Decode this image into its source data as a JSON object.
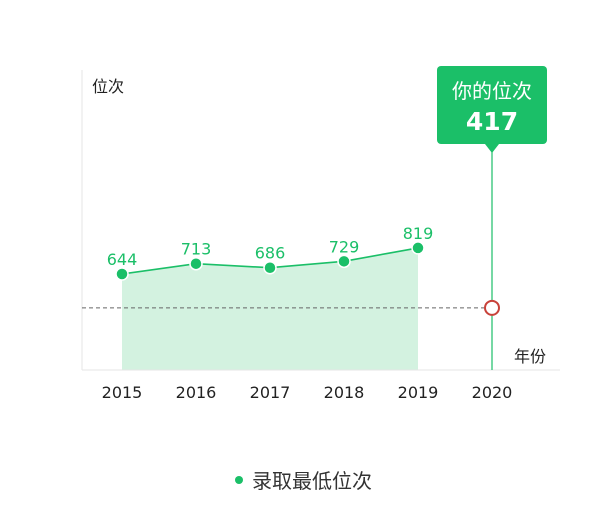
{
  "colors": {
    "accent": "#1bbf68",
    "area_fill": "#d3f2e0",
    "reference_line": "#666666",
    "marker_ring": "#c8423a"
  },
  "chart_data": {
    "type": "line",
    "ylabel": "位次",
    "xlabel": "年份",
    "categories": [
      "2015",
      "2016",
      "2017",
      "2018",
      "2019",
      "2020"
    ],
    "series": [
      {
        "name": "录取最低位次",
        "values": [
          644,
          713,
          686,
          729,
          819,
          null
        ]
      }
    ],
    "data_labels": [
      "644",
      "713",
      "686",
      "729",
      "819"
    ],
    "ylim": [
      0,
      1300
    ],
    "grid": false,
    "area_fill": true,
    "legend_position": "bottom-center",
    "your_rank": {
      "title": "你的位次",
      "value": 417,
      "value_label": "417",
      "year": "2020"
    }
  }
}
